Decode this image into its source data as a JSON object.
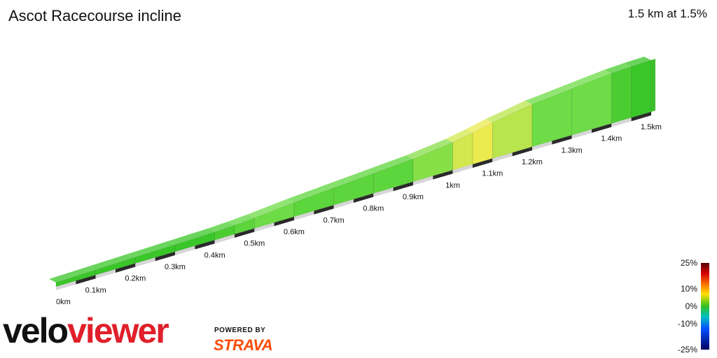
{
  "header": {
    "title": "Ascot Racecourse incline",
    "summary": "1.5 km at 1.5%"
  },
  "branding": {
    "logo_velo": "velo",
    "logo_viewer": "viewer",
    "powered_by": "POWERED BY",
    "strava": "STRAVA",
    "logo_color": "#e0202a",
    "strava_color": "#fc4c02"
  },
  "chart_data": {
    "type": "area",
    "title": "Ascot Racecourse incline",
    "xlabel": "",
    "ylabel": "",
    "x_unit": "km",
    "xlim": [
      0,
      1.5
    ],
    "tick_labels": [
      "0km",
      "0.1km",
      "0.2km",
      "0.3km",
      "0.4km",
      "0.5km",
      "0.6km",
      "0.7km",
      "0.8km",
      "0.9km",
      "1km",
      "1.1km",
      "1.2km",
      "1.3km",
      "1.4km",
      "1.5km"
    ],
    "distance_km": [
      0,
      0.1,
      0.2,
      0.3,
      0.4,
      0.45,
      0.5,
      0.6,
      0.7,
      0.8,
      0.9,
      1.0,
      1.05,
      1.1,
      1.2,
      1.3,
      1.4,
      1.45,
      1.5
    ],
    "gradient_pct": [
      0.5,
      0.5,
      0.5,
      0.5,
      1.0,
      1.5,
      2.0,
      1.5,
      1.5,
      1.5,
      2.5,
      4.0,
      4.5,
      3.5,
      2.0,
      2.0,
      1.0,
      0.5
    ],
    "gradient_scale": {
      "labels": [
        "25%",
        "10%",
        "0%",
        "-10%",
        "-25%"
      ],
      "values": [
        25,
        10,
        0,
        -10,
        -25
      ]
    }
  }
}
